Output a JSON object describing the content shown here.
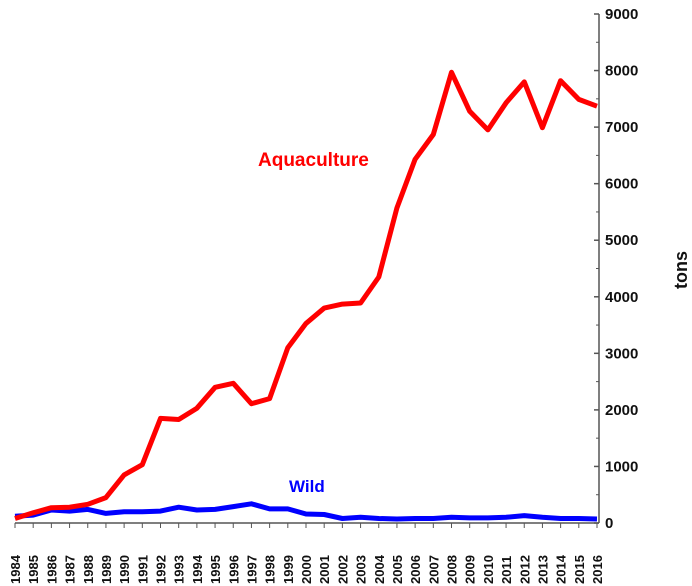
{
  "chart_data": {
    "type": "line",
    "title": "",
    "xlabel": "",
    "ylabel": "tons",
    "ylim": [
      0,
      9000
    ],
    "yticks": [
      0,
      1000,
      2000,
      3000,
      4000,
      5000,
      6000,
      7000,
      8000,
      9000
    ],
    "y_axis_side": "right",
    "grid": false,
    "x": [
      1984,
      1985,
      1986,
      1987,
      1988,
      1989,
      1990,
      1991,
      1992,
      1993,
      1994,
      1995,
      1996,
      1997,
      1998,
      1999,
      2000,
      2001,
      2002,
      2003,
      2004,
      2005,
      2006,
      2007,
      2008,
      2009,
      2010,
      2011,
      2012,
      2013,
      2014,
      2015,
      2016
    ],
    "series": [
      {
        "name": "Aquaculture",
        "color": "#ff0000",
        "values": [
          80,
          180,
          270,
          280,
          330,
          450,
          850,
          1030,
          1850,
          1830,
          2030,
          2400,
          2470,
          2110,
          2200,
          3100,
          3530,
          3800,
          3870,
          3890,
          4350,
          5570,
          6430,
          6870,
          7970,
          7280,
          6950,
          7430,
          7800,
          6990,
          7820,
          7490,
          7370
        ]
      },
      {
        "name": "Wild",
        "color": "#0000ff",
        "values": [
          120,
          140,
          230,
          210,
          240,
          170,
          200,
          200,
          210,
          280,
          230,
          240,
          290,
          340,
          250,
          250,
          160,
          150,
          80,
          100,
          80,
          70,
          80,
          80,
          100,
          90,
          90,
          100,
          130,
          100,
          80,
          80,
          70
        ]
      }
    ]
  }
}
